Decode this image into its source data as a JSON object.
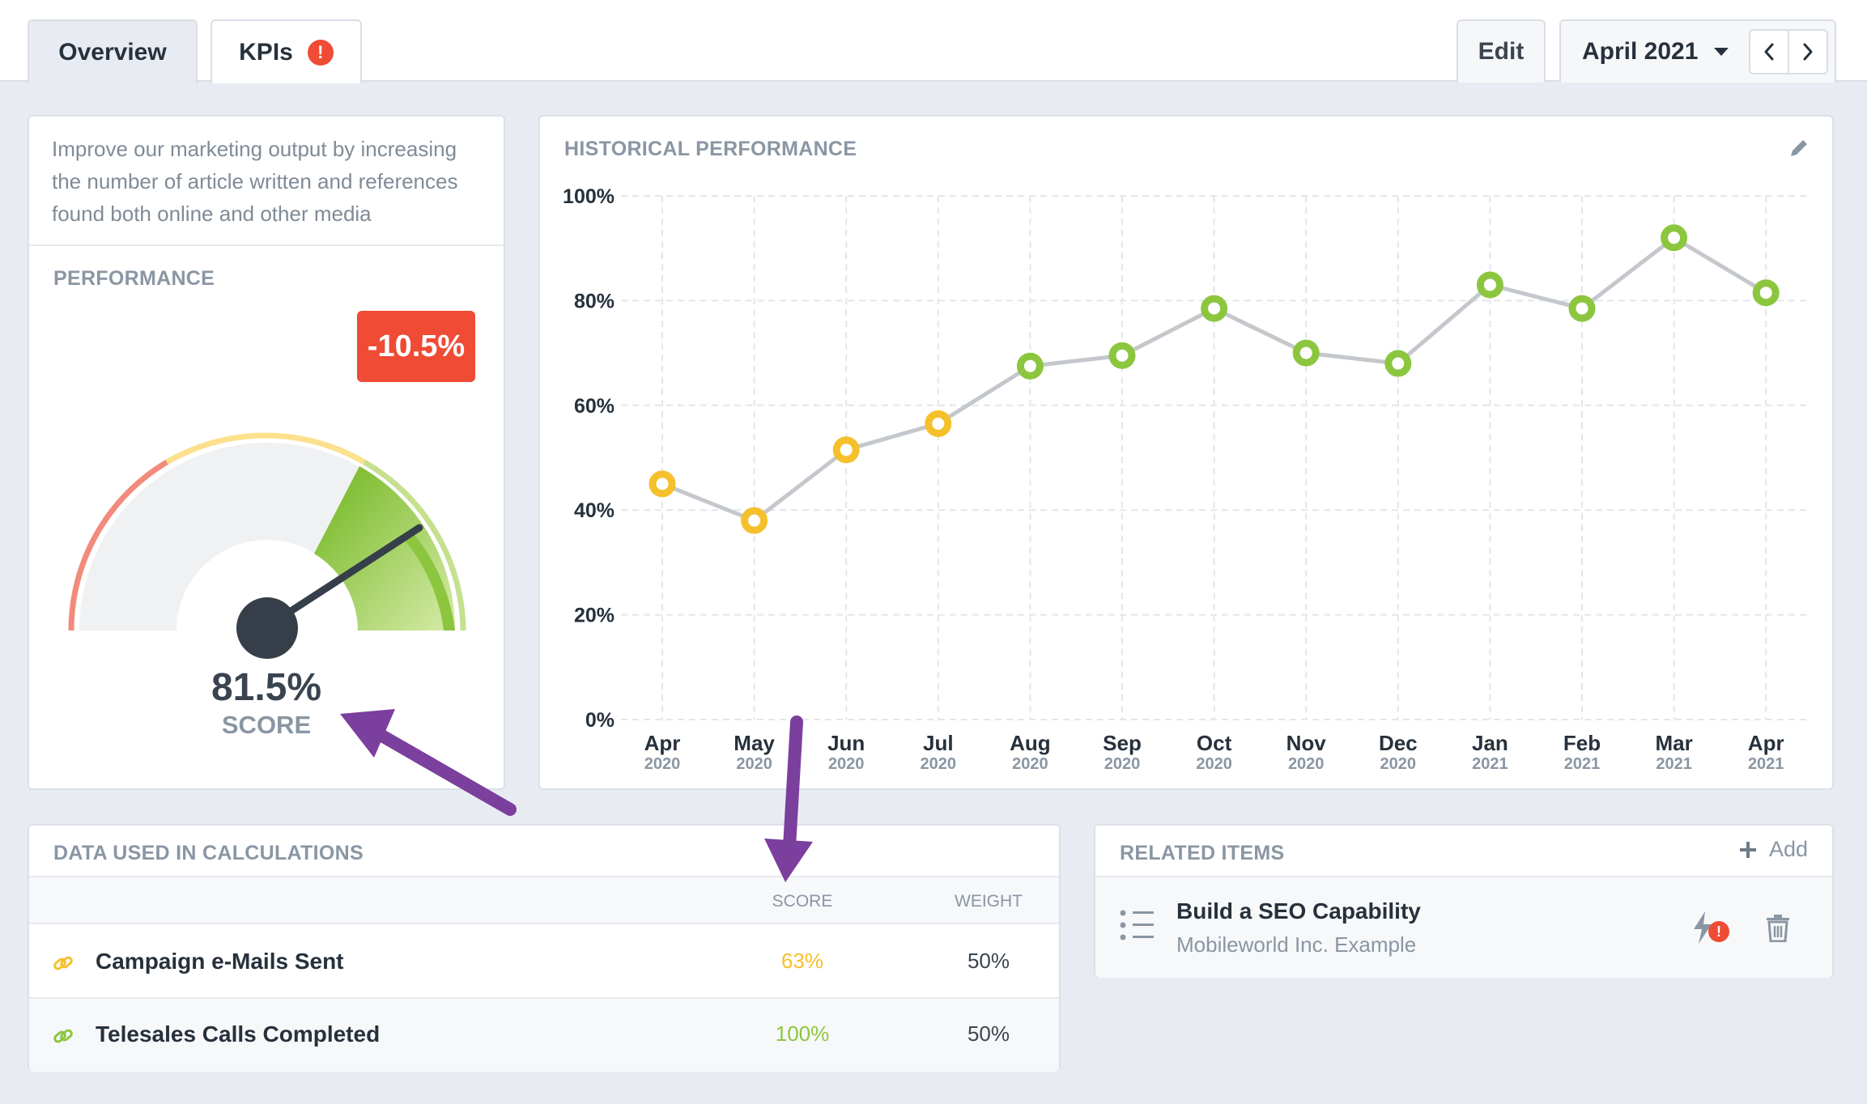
{
  "tabs": {
    "overview": "Overview",
    "kpis": "KPIs",
    "kpis_alert": "!"
  },
  "header": {
    "edit_label": "Edit",
    "period_label": "April 2021"
  },
  "description": "Improve our marketing output by increasing the number of article written and references found both online and other media",
  "performance": {
    "title": "PERFORMANCE",
    "change_badge": "-10.5%",
    "score_value": "81.5%",
    "score_label": "SCORE",
    "gauge_value": 0.815
  },
  "historical": {
    "title": "HISTORICAL PERFORMANCE"
  },
  "chart_data": {
    "type": "line",
    "title": "HISTORICAL PERFORMANCE",
    "x": [
      "Apr 2020",
      "May 2020",
      "Jun 2020",
      "Jul 2020",
      "Aug 2020",
      "Sep 2020",
      "Oct 2020",
      "Nov 2020",
      "Dec 2020",
      "Jan 2021",
      "Feb 2021",
      "Mar 2021",
      "Apr 2021"
    ],
    "x_month": [
      "Apr",
      "May",
      "Jun",
      "Jul",
      "Aug",
      "Sep",
      "Oct",
      "Nov",
      "Dec",
      "Jan",
      "Feb",
      "Mar",
      "Apr"
    ],
    "x_year": [
      "2020",
      "2020",
      "2020",
      "2020",
      "2020",
      "2020",
      "2020",
      "2020",
      "2020",
      "2021",
      "2021",
      "2021",
      "2021"
    ],
    "values": [
      45,
      38,
      51.5,
      56.5,
      67.5,
      69.5,
      78.5,
      70,
      68,
      83,
      78.5,
      92,
      81.5
    ],
    "point_colors": [
      "#f6c02c",
      "#f6c02c",
      "#f6c02c",
      "#f6c02c",
      "#8cc63f",
      "#8cc63f",
      "#8cc63f",
      "#8cc63f",
      "#8cc63f",
      "#8cc63f",
      "#8cc63f",
      "#8cc63f",
      "#8cc63f"
    ],
    "y_ticks": [
      "0%",
      "20%",
      "40%",
      "60%",
      "80%",
      "100%"
    ],
    "ylim": [
      0,
      100
    ],
    "grid": true,
    "line_color": "#c4c8cc"
  },
  "calculations": {
    "title": "DATA USED IN CALCULATIONS",
    "col_score": "SCORE",
    "col_weight": "WEIGHT",
    "rows": [
      {
        "name": "Campaign e-Mails Sent",
        "score": "63%",
        "weight": "50%",
        "color": "#f6c02c"
      },
      {
        "name": "Telesales Calls Completed",
        "score": "100%",
        "weight": "50%",
        "color": "#8cc63f"
      }
    ]
  },
  "related": {
    "title": "RELATED ITEMS",
    "add_label": "Add",
    "item_title": "Build a SEO Capability",
    "item_subtitle": "Mobileworld Inc. Example"
  },
  "colors": {
    "alert": "#ef4b35",
    "green": "#8cc63f",
    "yellow": "#f6c02c",
    "annotation_arrow": "#7b3f9e"
  }
}
